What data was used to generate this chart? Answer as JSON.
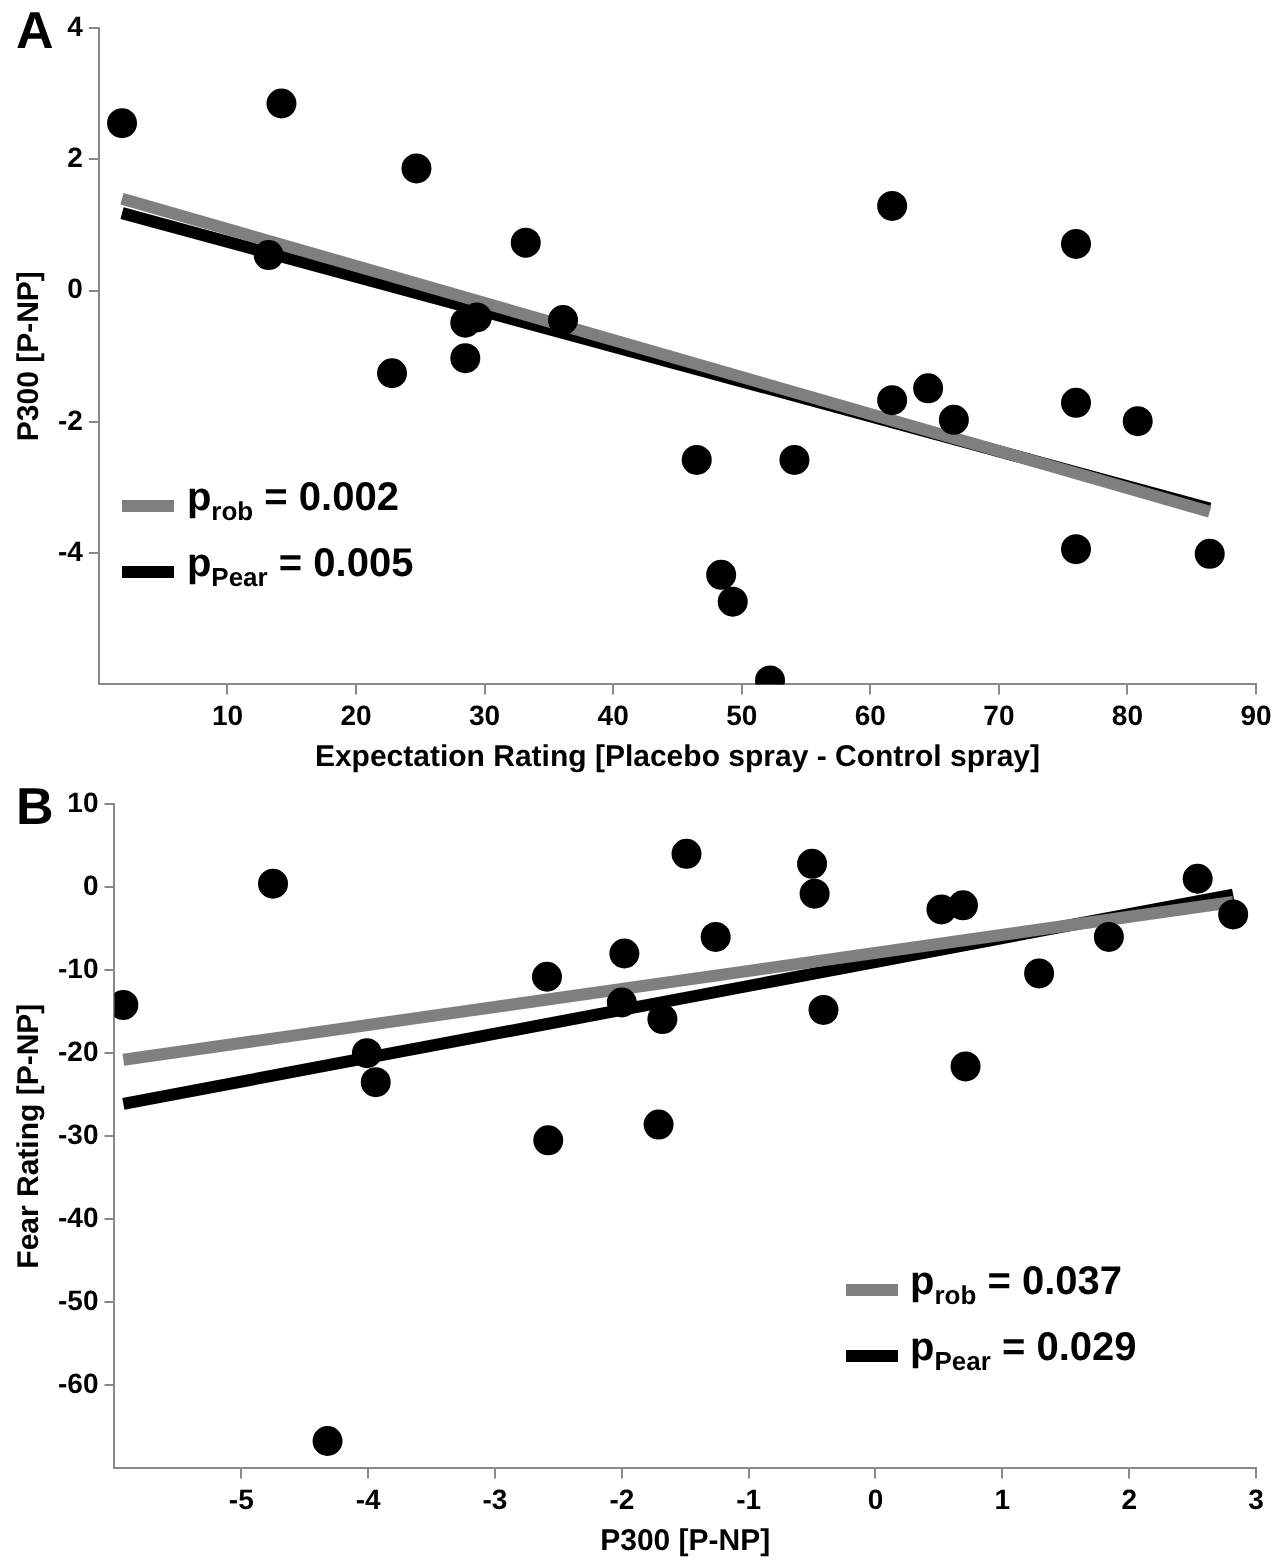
{
  "chart_data": [
    {
      "type": "scatter",
      "title": "A",
      "xlabel": "Expectation Rating [Placebo spray - Control spray]",
      "ylabel": "P300 [P-NP]",
      "xlim": [
        0,
        90
      ],
      "xticks": [
        10,
        20,
        30,
        40,
        50,
        60,
        70,
        80,
        90
      ],
      "ylim": [
        -6,
        4
      ],
      "yticks": [
        -4,
        -2,
        0,
        2,
        4
      ],
      "grid": false,
      "legend": "bottom left",
      "series": [
        {
          "type": "scatter",
          "marker": "circle",
          "color": "#000000",
          "x": [
            1.8,
            14.2,
            13.2,
            24.7,
            22.8,
            28.5,
            29.4,
            28.5,
            33.2,
            36.1,
            46.5,
            54.1,
            48.4,
            49.3,
            52.2,
            61.7,
            61.7,
            64.5,
            66.5,
            76.0,
            76.0,
            76.0,
            80.8,
            86.4
          ],
          "values": [
            2.55,
            2.85,
            0.54,
            1.86,
            -1.26,
            -0.49,
            -0.41,
            -1.03,
            0.73,
            -0.45,
            -2.58,
            -2.58,
            -4.33,
            -4.74,
            -5.94,
            1.29,
            -1.67,
            -1.49,
            -1.97,
            0.71,
            -1.71,
            -3.94,
            -1.99,
            -4.01
          ]
        },
        {
          "type": "line",
          "marker": "none",
          "name": "p$_{rob}$ = 0.002",
          "color": "#7f7f7f",
          "x": [
            1.8,
            86.4
          ],
          "values": [
            1.4,
            -3.37
          ]
        },
        {
          "type": "line",
          "marker": "none",
          "name": "p$_{Pear}$ = 0.005",
          "color": "#000000",
          "x": [
            1.8,
            86.4
          ],
          "values": [
            1.18,
            -3.32
          ]
        }
      ]
    },
    {
      "type": "scatter",
      "title": "B",
      "xlabel": "P300 [P-NP]",
      "ylabel": "Fear Rating [P-NP]",
      "xlim": [
        -6,
        3
      ],
      "xticks": [
        -5,
        -4,
        -3,
        -2,
        -1,
        0,
        1,
        2,
        3
      ],
      "ylim": [
        -70,
        10
      ],
      "yticks": [
        -60,
        -50,
        -40,
        -30,
        -20,
        -10,
        0,
        10
      ],
      "grid": false,
      "legend": "bottom right",
      "series": [
        {
          "type": "scatter",
          "marker": "circle",
          "color": "#000000",
          "x": [
            -5.93,
            -4.75,
            -4.32,
            -4.01,
            -3.94,
            -2.59,
            -2.58,
            -1.98,
            -2.0,
            -1.71,
            -1.68,
            -1.49,
            -1.26,
            -0.5,
            -0.48,
            -0.41,
            0.52,
            0.69,
            0.71,
            1.29,
            1.84,
            2.54,
            2.82
          ],
          "values": [
            -14.2,
            0.4,
            -66.7,
            -20.0,
            -23.5,
            -10.8,
            -30.5,
            -8.0,
            -13.9,
            -28.6,
            -15.9,
            4.0,
            -6.0,
            2.8,
            -0.8,
            -14.8,
            -2.7,
            -2.2,
            -21.6,
            -10.4,
            -6.0,
            1.0,
            -3.3
          ]
        },
        {
          "type": "line",
          "marker": "none",
          "name": "p$_{rob}$ = 0.037",
          "color": "#7f7f7f",
          "x": [
            -5.93,
            2.82
          ],
          "values": [
            -20.8,
            -1.8
          ]
        },
        {
          "type": "line",
          "marker": "none",
          "name": "p$_{Pear}$ = 0.029",
          "color": "#000000",
          "x": [
            -5.93,
            2.82
          ],
          "values": [
            -26.1,
            -0.9
          ]
        }
      ]
    }
  ]
}
